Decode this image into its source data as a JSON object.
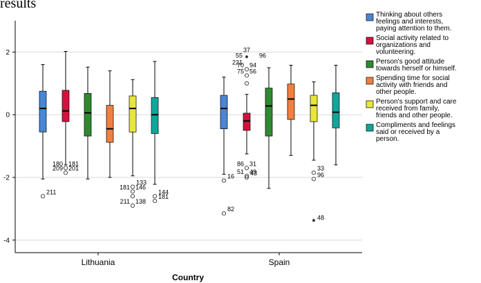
{
  "title_fragment": "results",
  "chart_data": {
    "type": "boxplot",
    "xlabel": "Country",
    "ylabel": "",
    "ylim": [
      -4.4,
      3.0
    ],
    "yticks": [
      -4,
      -2,
      0,
      2
    ],
    "grid": "horizontal",
    "legend_position": "right",
    "categories": [
      "Lithuania",
      "Spain"
    ],
    "series": [
      {
        "name": "Thinking about others feelings and interests, paying attention to them.",
        "color": "#4a86d4",
        "boxes": [
          {
            "category": "Lithuania",
            "whisker_low": -2.05,
            "q1": -0.55,
            "median": 0.2,
            "q3": 0.75,
            "whisker_high": 1.6,
            "outliers": [
              {
                "y": -2.6,
                "marker": "circle",
                "labels": [
                  "211"
                ]
              }
            ]
          },
          {
            "category": "Spain",
            "whisker_low": -1.9,
            "q1": -0.45,
            "median": 0.2,
            "q3": 0.62,
            "whisker_high": 1.2,
            "outliers": [
              {
                "y": -2.1,
                "marker": "circle",
                "labels": [
                  "16"
                ]
              },
              {
                "y": -3.15,
                "marker": "circle",
                "labels": [
                  "82"
                ]
              }
            ]
          }
        ]
      },
      {
        "name": "Social activity related to organizations and volunteering.",
        "color": "#d2123e",
        "boxes": [
          {
            "category": "Lithuania",
            "whisker_low": -1.6,
            "q1": -0.22,
            "median": 0.12,
            "q3": 0.78,
            "whisker_high": 2.02,
            "outliers": [
              {
                "y": -1.7,
                "marker": "circle",
                "labels": [
                  "180",
                  "181"
                ]
              },
              {
                "y": -1.85,
                "marker": "circle",
                "labels": [
                  "209",
                  "201"
                ]
              }
            ]
          },
          {
            "category": "Spain",
            "whisker_low": -1.25,
            "q1": -0.5,
            "median": -0.2,
            "q3": 0.05,
            "whisker_high": 0.65,
            "outliers": [
              {
                "y": 1.8,
                "marker": "star",
                "labels": [
                  "37",
                  "55",
                  "221",
                  "96"
                ]
              },
              {
                "y": 1.45,
                "marker": "circle",
                "labels": [
                  "70",
                  "94"
                ]
              },
              {
                "y": 1.25,
                "marker": "circle",
                "labels": [
                  "75",
                  "56"
                ]
              },
              {
                "y": 1.0,
                "marker": "circle",
                "labels": []
              },
              {
                "y": -1.7,
                "marker": "circle",
                "labels": [
                  "86",
                  "31"
                ]
              },
              {
                "y": -1.95,
                "marker": "circle",
                "labels": [
                  "51",
                  "49"
                ]
              },
              {
                "y": -2.0,
                "marker": "circle",
                "labels": [
                  "43"
                ]
              }
            ]
          }
        ]
      },
      {
        "name": "Person's good attitude towards herself or himself.",
        "color": "#2f8a2f",
        "boxes": [
          {
            "category": "Lithuania",
            "whisker_low": -2.05,
            "q1": -0.68,
            "median": 0.06,
            "q3": 0.68,
            "whisker_high": 1.52,
            "outliers": []
          },
          {
            "category": "Spain",
            "whisker_low": -2.35,
            "q1": -0.68,
            "median": 0.28,
            "q3": 0.85,
            "whisker_high": 1.5,
            "outliers": []
          }
        ]
      },
      {
        "name": "Spending time for social activity with friends and other people.",
        "color": "#f08040",
        "boxes": [
          {
            "category": "Lithuania",
            "whisker_low": -2.0,
            "q1": -0.88,
            "median": -0.45,
            "q3": 0.3,
            "whisker_high": 1.4,
            "outliers": []
          },
          {
            "category": "Spain",
            "whisker_low": -1.3,
            "q1": -0.15,
            "median": 0.5,
            "q3": 0.98,
            "whisker_high": 1.58,
            "outliers": []
          }
        ]
      },
      {
        "name": "Person's support and care received from family, friends and other people.",
        "color": "#e8e63a",
        "boxes": [
          {
            "category": "Lithuania",
            "whisker_low": -1.95,
            "q1": -0.55,
            "median": 0.2,
            "q3": 0.6,
            "whisker_high": 1.12,
            "outliers": [
              {
                "y": -2.3,
                "marker": "circle",
                "labels": [
                  "133"
                ]
              },
              {
                "y": -2.45,
                "marker": "circle",
                "labels": [
                  "181",
                  "146"
                ]
              },
              {
                "y": -2.6,
                "marker": "circle",
                "labels": []
              },
              {
                "y": -2.9,
                "marker": "circle",
                "labels": [
                  "211",
                  "138"
                ]
              }
            ]
          },
          {
            "category": "Spain",
            "whisker_low": -1.45,
            "q1": -0.22,
            "median": 0.3,
            "q3": 0.62,
            "whisker_high": 1.05,
            "outliers": [
              {
                "y": -1.85,
                "marker": "circle",
                "labels": [
                  "33"
                ]
              },
              {
                "y": -2.05,
                "marker": "circle",
                "labels": [
                  "96"
                ]
              },
              {
                "y": -3.42,
                "marker": "star",
                "labels": [
                  "48"
                ]
              }
            ]
          }
        ]
      },
      {
        "name": "Compliments and feelings said or received by a person.",
        "color": "#12a69a",
        "boxes": [
          {
            "category": "Lithuania",
            "whisker_low": -2.22,
            "q1": -0.6,
            "median": 0.0,
            "q3": 0.55,
            "whisker_high": 1.7,
            "outliers": [
              {
                "y": -2.6,
                "marker": "circle",
                "labels": [
                  "144"
                ]
              },
              {
                "y": -2.75,
                "marker": "circle",
                "labels": [
                  "181"
                ]
              }
            ]
          },
          {
            "category": "Spain",
            "whisker_low": -1.6,
            "q1": -0.42,
            "median": 0.08,
            "q3": 0.7,
            "whisker_high": 1.58,
            "outliers": []
          }
        ]
      }
    ]
  }
}
